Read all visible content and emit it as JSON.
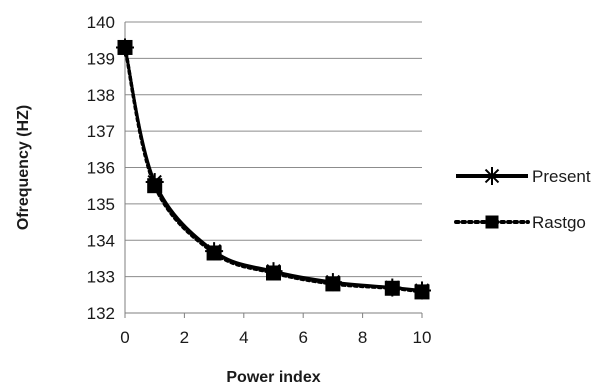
{
  "chart_data": {
    "type": "line",
    "title": "",
    "xlabel": "Power index",
    "ylabel": "Ofrequency (HZ)",
    "xlim": [
      0,
      10
    ],
    "ylim": [
      132,
      140
    ],
    "xticks": [
      0,
      2,
      4,
      6,
      8,
      10
    ],
    "yticks": [
      132,
      133,
      134,
      135,
      136,
      137,
      138,
      139,
      140
    ],
    "xtick_labels": [
      "0",
      "2",
      "4",
      "6",
      "8",
      "10"
    ],
    "ytick_labels": [
      "132",
      "133",
      "134",
      "135",
      "136",
      "137",
      "138",
      "139",
      "140"
    ],
    "grid": "horizontal",
    "legend_position": "right",
    "x": [
      0,
      1,
      3,
      5,
      7,
      9,
      10
    ],
    "series": [
      {
        "name": "Present",
        "values": [
          139.3,
          135.6,
          133.7,
          133.15,
          132.85,
          132.7,
          132.62
        ],
        "color": "#000000",
        "line": "solid",
        "marker": "asterisk"
      },
      {
        "name": "Rastgo",
        "values": [
          139.3,
          135.5,
          133.65,
          133.1,
          132.8,
          132.68,
          132.58
        ],
        "color": "#000000",
        "line": "dotted",
        "marker": "square"
      }
    ]
  }
}
